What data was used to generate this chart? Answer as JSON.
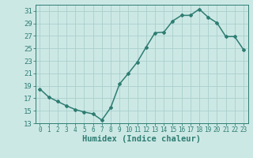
{
  "x": [
    0,
    1,
    2,
    3,
    4,
    5,
    6,
    7,
    8,
    9,
    10,
    11,
    12,
    13,
    14,
    15,
    16,
    17,
    18,
    19,
    20,
    21,
    22,
    23
  ],
  "y": [
    18.5,
    17.2,
    16.5,
    15.8,
    15.2,
    14.8,
    14.5,
    13.5,
    15.5,
    19.3,
    21.0,
    22.8,
    25.2,
    27.5,
    27.6,
    29.4,
    30.3,
    30.3,
    31.3,
    30.0,
    29.1,
    26.9,
    26.9,
    24.8
  ],
  "xlabel": "Humidex (Indice chaleur)",
  "xlim": [
    -0.5,
    23.5
  ],
  "ylim": [
    13,
    32
  ],
  "yticks": [
    13,
    15,
    17,
    19,
    21,
    23,
    25,
    27,
    29,
    31
  ],
  "xticks": [
    0,
    1,
    2,
    3,
    4,
    5,
    6,
    7,
    8,
    9,
    10,
    11,
    12,
    13,
    14,
    15,
    16,
    17,
    18,
    19,
    20,
    21,
    22,
    23
  ],
  "line_color": "#2e7d72",
  "bg_color": "#cce8e5",
  "grid_color": "#aacfcc",
  "marker": "D",
  "marker_size": 2.0,
  "line_width": 1.1,
  "xlabel_fontsize": 7.5,
  "ytick_fontsize": 6.5,
  "xtick_fontsize": 5.5
}
